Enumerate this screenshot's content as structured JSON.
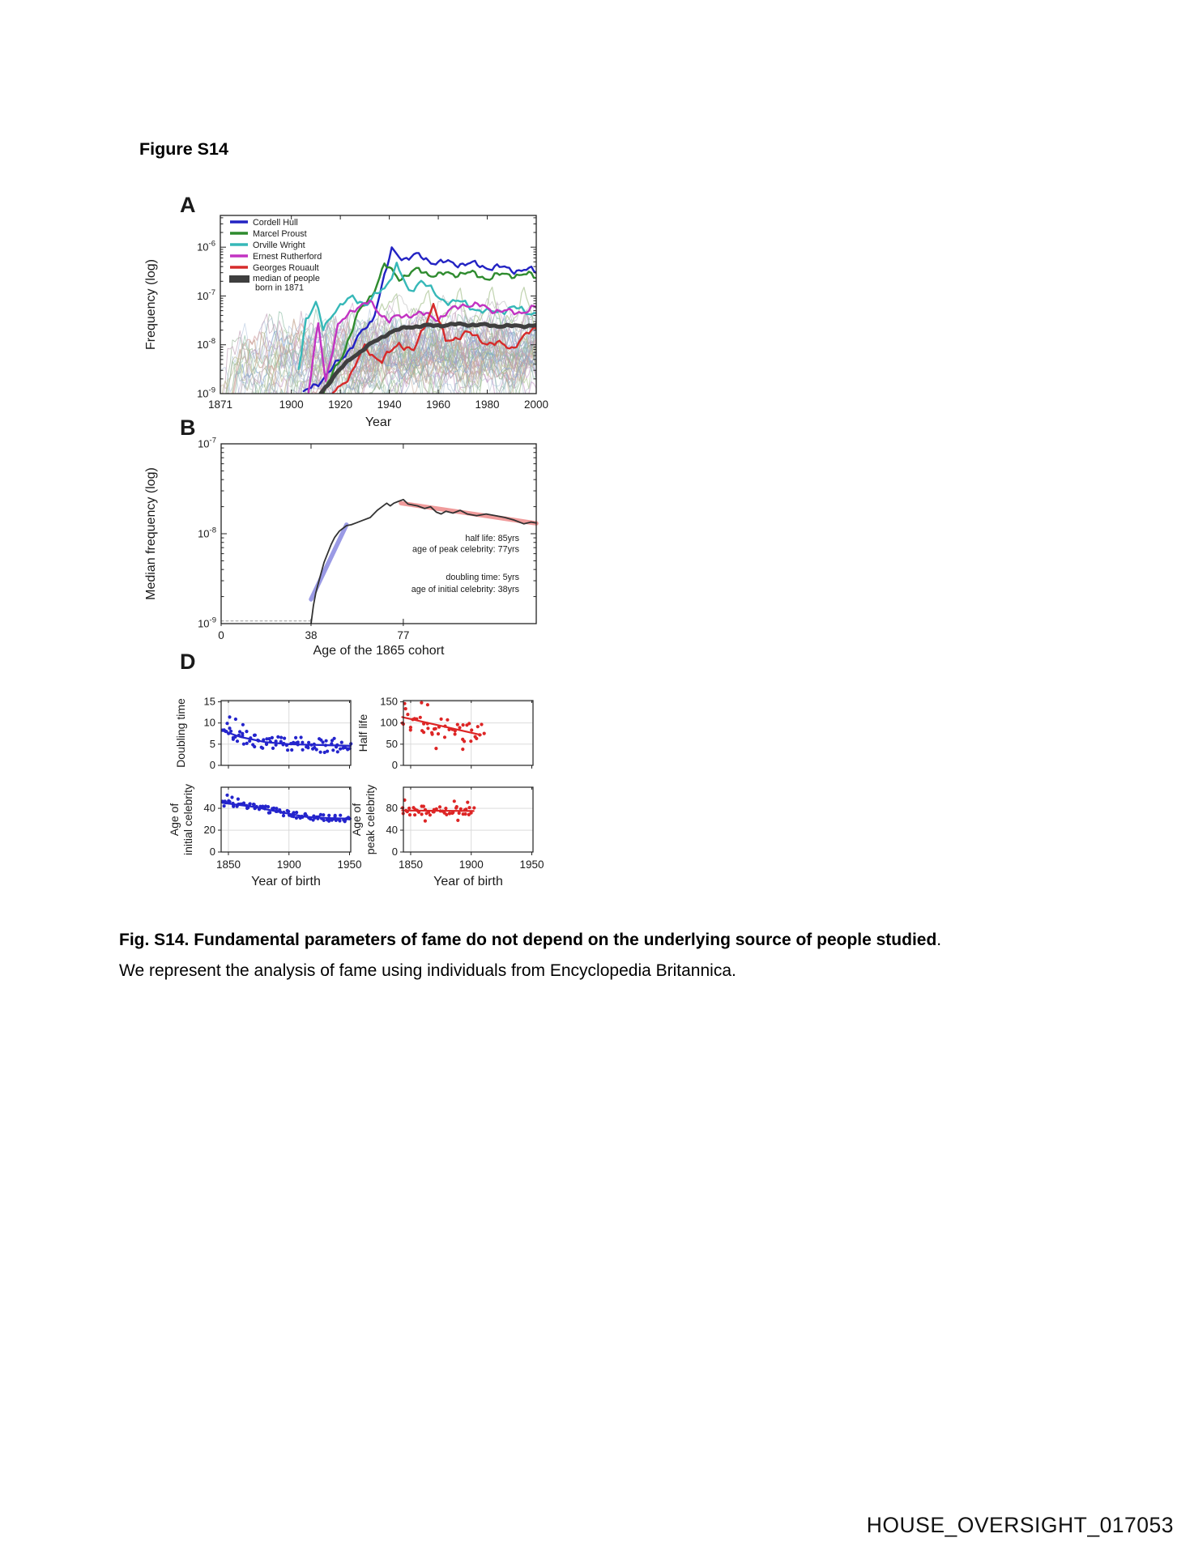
{
  "page": {
    "heading": "Figure S14",
    "caption_bold": "Fig. S14. Fundamental parameters of fame do not depend on the underlying source of people studied",
    "caption_tail": ".",
    "caption_line2": "We represent the analysis of fame using individuals from Encyclopedia Britannica.",
    "watermark": "HOUSE_OVERSIGHT_017053"
  },
  "panel_labels": {
    "a": "A",
    "b": "B",
    "d": "D"
  },
  "chart_data": [
    {
      "id": "A",
      "type": "line",
      "title": "",
      "ylabel": "Frequency (log)",
      "xlabel": "Year",
      "x_ticks": [
        1871,
        1900,
        1920,
        1940,
        1960,
        1980,
        2000
      ],
      "xlim": [
        1871,
        2000
      ],
      "y_tick_exponents": [
        -6,
        -7,
        -8,
        -9
      ],
      "ylim_log10": [
        -9,
        -5.35
      ],
      "grid": false,
      "legend_position": "top-left-inside",
      "legend": [
        {
          "label": "Cordell Hull",
          "color": "#2323c3"
        },
        {
          "label": "Marcel Proust",
          "color": "#2e8b2e"
        },
        {
          "label": "Orville Wright",
          "color": "#36b8b8"
        },
        {
          "label": "Ernest Rutherford",
          "color": "#c233c2"
        },
        {
          "label": "Georges Rouault",
          "color": "#d62b2b"
        },
        {
          "label": "median of people born in 1871",
          "label_lines": [
            "median of people",
            "born in 1871"
          ],
          "color": "#3f3f3f",
          "thick": true
        }
      ],
      "series": [
        {
          "name": "Cordell Hull",
          "color": "#2323c3",
          "width": 2.4,
          "envelope_year_log10": [
            [
              1905,
              -9
            ],
            [
              1915,
              -8.6
            ],
            [
              1925,
              -8.0
            ],
            [
              1933,
              -7.5
            ],
            [
              1938,
              -6.6
            ],
            [
              1941,
              -6.08
            ],
            [
              1946,
              -6.22
            ],
            [
              1951,
              -6.18
            ],
            [
              1960,
              -6.32
            ],
            [
              1970,
              -6.33
            ],
            [
              1980,
              -6.4
            ],
            [
              1990,
              -6.45
            ],
            [
              2000,
              -6.5
            ]
          ]
        },
        {
          "name": "Marcel Proust",
          "color": "#2e8b2e",
          "width": 2.4,
          "envelope_year_log10": [
            [
              1913,
              -9
            ],
            [
              1920,
              -8.3
            ],
            [
              1927,
              -7.4
            ],
            [
              1933,
              -6.95
            ],
            [
              1938,
              -6.38
            ],
            [
              1944,
              -6.62
            ],
            [
              1952,
              -6.48
            ],
            [
              1960,
              -6.58
            ],
            [
              1970,
              -6.52
            ],
            [
              1980,
              -6.62
            ],
            [
              1990,
              -6.55
            ],
            [
              2000,
              -6.6
            ]
          ]
        },
        {
          "name": "Orville Wright",
          "color": "#36b8b8",
          "width": 2.4,
          "envelope_year_log10": [
            [
              1903,
              -8.5
            ],
            [
              1906,
              -7.45
            ],
            [
              1910,
              -7.15
            ],
            [
              1913,
              -7.7
            ],
            [
              1918,
              -7.25
            ],
            [
              1925,
              -7.05
            ],
            [
              1931,
              -7.15
            ],
            [
              1938,
              -6.85
            ],
            [
              1943,
              -6.35
            ],
            [
              1948,
              -6.95
            ],
            [
              1953,
              -6.65
            ],
            [
              1960,
              -7.05
            ],
            [
              1970,
              -7.15
            ],
            [
              1980,
              -7.35
            ],
            [
              1990,
              -7.25
            ],
            [
              2000,
              -7.35
            ]
          ]
        },
        {
          "name": "Ernest Rutherford",
          "color": "#c233c2",
          "width": 2.4,
          "envelope_year_log10": [
            [
              1907,
              -9
            ],
            [
              1911,
              -7.55
            ],
            [
              1914,
              -8.7
            ],
            [
              1919,
              -7.65
            ],
            [
              1925,
              -7.25
            ],
            [
              1932,
              -7.15
            ],
            [
              1940,
              -7.5
            ],
            [
              1950,
              -7.35
            ],
            [
              1960,
              -7.45
            ],
            [
              1971,
              -7.15
            ],
            [
              1980,
              -7.25
            ],
            [
              1990,
              -7.35
            ],
            [
              2000,
              -7.25
            ]
          ]
        },
        {
          "name": "Georges Rouault",
          "color": "#d62b2b",
          "width": 2.4,
          "envelope_year_log10": [
            [
              1917,
              -9
            ],
            [
              1925,
              -8.55
            ],
            [
              1930,
              -8.05
            ],
            [
              1937,
              -8.35
            ],
            [
              1944,
              -7.95
            ],
            [
              1950,
              -8.15
            ],
            [
              1958,
              -7.15
            ],
            [
              1963,
              -7.95
            ],
            [
              1971,
              -7.75
            ],
            [
              1980,
              -7.95
            ],
            [
              1990,
              -8.05
            ],
            [
              2000,
              -7.65
            ]
          ]
        },
        {
          "name": "median of people born in 1871",
          "color": "#3f3f3f",
          "width": 5,
          "amp": 0.035,
          "envelope_year_log10": [
            [
              1912,
              -9
            ],
            [
              1918,
              -8.6
            ],
            [
              1925,
              -8.25
            ],
            [
              1932,
              -8.0
            ],
            [
              1940,
              -7.75
            ],
            [
              1948,
              -7.63
            ],
            [
              1960,
              -7.6
            ],
            [
              1970,
              -7.58
            ],
            [
              1980,
              -7.6
            ],
            [
              1990,
              -7.62
            ],
            [
              2000,
              -7.6
            ]
          ]
        }
      ],
      "background_lines": {
        "count": 48,
        "seed": 9,
        "points_approximate": true,
        "log10_range": [
          -9,
          -6.8
        ],
        "palette": [
          "#8fae8f",
          "#9fb6d6",
          "#c79fc7",
          "#b9b39b",
          "#8fc4c4",
          "#c7ab97",
          "#9aa3cf",
          "#abc493",
          "#cf9a9a",
          "#97aec0",
          "#bfbf95",
          "#a793c7",
          "#7f9fd0",
          "#92c0a8",
          "#c0a0b8",
          "#a8a8a8"
        ]
      }
    },
    {
      "id": "B",
      "type": "line",
      "title": "",
      "ylabel": "Median frequency (log)",
      "xlabel": "Age of the 1865 cohort",
      "x_ticks": [
        0,
        38,
        77
      ],
      "xlim": [
        0,
        133.2
      ],
      "y_tick_exponents": [
        -7,
        -8,
        -9
      ],
      "ylim_log10": [
        -9,
        -7
      ],
      "curve_color": "#333333",
      "curve_age_log10": [
        [
          38,
          -9
        ],
        [
          39,
          -8.8
        ],
        [
          40,
          -8.66
        ],
        [
          41,
          -8.56
        ],
        [
          42,
          -8.46
        ],
        [
          43.5,
          -8.32
        ],
        [
          45,
          -8.22
        ],
        [
          46.5,
          -8.12
        ],
        [
          48,
          -8.04
        ],
        [
          50,
          -7.97
        ],
        [
          53,
          -7.91
        ],
        [
          55,
          -7.9
        ],
        [
          57,
          -7.88
        ],
        [
          60,
          -7.85
        ],
        [
          63,
          -7.82
        ],
        [
          66,
          -7.74
        ],
        [
          68,
          -7.7
        ],
        [
          70,
          -7.66
        ],
        [
          71.5,
          -7.69
        ],
        [
          73,
          -7.66
        ],
        [
          75,
          -7.64
        ],
        [
          77,
          -7.62
        ],
        [
          79,
          -7.67
        ],
        [
          81,
          -7.68
        ],
        [
          83,
          -7.69
        ],
        [
          86,
          -7.72
        ],
        [
          88.5,
          -7.7
        ],
        [
          91,
          -7.76
        ],
        [
          93,
          -7.78
        ],
        [
          95,
          -7.75
        ],
        [
          98,
          -7.77
        ],
        [
          101,
          -7.74
        ],
        [
          104,
          -7.78
        ],
        [
          108,
          -7.8
        ],
        [
          112,
          -7.78
        ],
        [
          116,
          -7.8
        ],
        [
          120,
          -7.82
        ],
        [
          124,
          -7.85
        ],
        [
          128,
          -7.89
        ],
        [
          131,
          -7.87
        ],
        [
          133.2,
          -7.88
        ]
      ],
      "doubling_fit": {
        "color": "#3535cc",
        "points": [
          [
            38,
            -8.73
          ],
          [
            53,
            -7.9
          ]
        ]
      },
      "halflife_fit": {
        "color": "#e34848",
        "points": [
          [
            76,
            -7.66
          ],
          [
            133.2,
            -7.885
          ]
        ]
      },
      "baseline_dashed": {
        "log10": -8.97,
        "x_range": [
          0,
          38
        ]
      },
      "annotations": {
        "red_color": "#e04545",
        "blue_color": "#4545c5",
        "red": [
          "half life: 85yrs",
          "age of peak celebrity: 77yrs"
        ],
        "blue": [
          "doubling time: 5yrs",
          "age of initial celebrity: 38yrs"
        ]
      },
      "parameters": {
        "half_life_yrs": 85,
        "age_peak_celebrity_yrs": 77,
        "doubling_time_yrs": 5,
        "age_initial_celebrity_yrs": 38
      }
    },
    {
      "id": "D",
      "type": "scatter",
      "xlabel": "Year of birth",
      "x_ticks": [
        1850,
        1900,
        1950
      ],
      "xlim": [
        1844,
        1951
      ],
      "grid": true,
      "points_approximate": true,
      "subplots": [
        {
          "name": "Doubling time",
          "ylabel_lines": [
            "Doubling time"
          ],
          "color": "#2424cc",
          "ylim": [
            0,
            15.3
          ],
          "y_ticks": [
            0,
            5,
            10,
            15
          ],
          "x_range": [
            1845,
            1951
          ],
          "n_points": 88,
          "noise": 1.7,
          "seed": 11,
          "fit": [
            [
              1845,
              8.2
            ],
            [
              1860,
              6.7
            ],
            [
              1880,
              5.5
            ],
            [
              1900,
              5.0
            ],
            [
              1925,
              4.8
            ],
            [
              1951,
              4.6
            ]
          ],
          "outliers": [
            [
              1851,
              11.4
            ],
            [
              1856,
              10.9
            ],
            [
              1849,
              9.9
            ],
            [
              1862,
              9.6
            ]
          ],
          "show_x_labels": false
        },
        {
          "name": "Half life",
          "ylabel_lines": [
            "Half life"
          ],
          "color": "#dd2525",
          "ylim": [
            0,
            153
          ],
          "y_ticks": [
            0,
            50,
            100,
            150
          ],
          "x_range": [
            1843,
            1911
          ],
          "n_points": 44,
          "noise": 27,
          "seed": 22,
          "fit": [
            [
              1843,
              114
            ],
            [
              1908,
              72
            ]
          ],
          "outliers": [
            [
              1845,
              146
            ],
            [
              1859,
              148
            ],
            [
              1864,
              143
            ],
            [
              1871,
              40
            ],
            [
              1893,
              38
            ]
          ],
          "show_x_labels": false
        },
        {
          "name": "Age of initial celebrity",
          "ylabel_lines": [
            "Age of",
            "initial celebrity"
          ],
          "color": "#2424cc",
          "ylim": [
            0,
            59.3
          ],
          "y_ticks": [
            0,
            20,
            40
          ],
          "x_range": [
            1845,
            1951
          ],
          "n_points": 95,
          "noise": 2.8,
          "seed": 33,
          "fit": [
            [
              1845,
              45
            ],
            [
              1870,
              41.5
            ],
            [
              1895,
              36
            ],
            [
              1915,
              32
            ],
            [
              1935,
              31
            ],
            [
              1951,
              30.5
            ]
          ],
          "outliers": [
            [
              1849,
              52
            ],
            [
              1853,
              50
            ],
            [
              1858,
              48.5
            ]
          ],
          "show_x_labels": true
        },
        {
          "name": "Age of peak celebrity",
          "ylabel_lines": [
            "Age of",
            "peak celebrity"
          ],
          "color": "#dd2525",
          "ylim": [
            0,
            118.6
          ],
          "y_ticks": [
            0,
            40,
            80
          ],
          "x_range": [
            1843,
            1902
          ],
          "n_points": 44,
          "noise": 8,
          "seed": 44,
          "fit": [
            [
              1843,
              76
            ],
            [
              1902,
              75
            ]
          ],
          "outliers": [
            [
              1845,
              95
            ],
            [
              1886,
              93
            ],
            [
              1897,
              91
            ],
            [
              1862,
              57
            ],
            [
              1889,
              58
            ]
          ],
          "show_x_labels": true
        }
      ]
    }
  ]
}
